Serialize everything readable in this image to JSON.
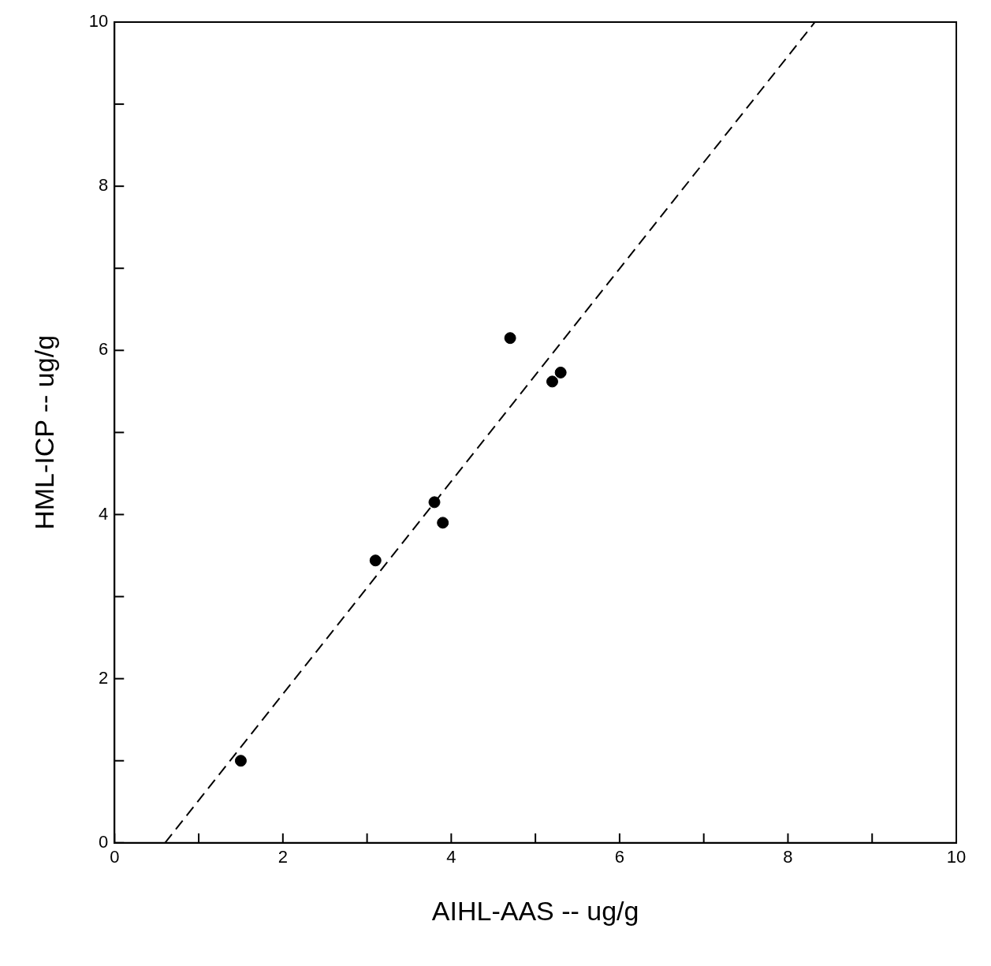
{
  "chart_data": {
    "type": "scatter",
    "xlabel": "AIHL-AAS -- ug/g",
    "ylabel": "HML-ICP -- ug/g",
    "xlim": [
      0,
      10
    ],
    "ylim": [
      0,
      10
    ],
    "xticks": [
      0,
      {
        "value": 1,
        "label": null
      },
      2,
      {
        "value": 3,
        "label": null
      },
      4,
      {
        "value": 5,
        "label": null
      },
      6,
      {
        "value": 7,
        "label": null
      },
      8,
      {
        "value": 9,
        "label": null
      },
      10
    ],
    "yticks": [
      0,
      {
        "value": 1,
        "label": null
      },
      2,
      {
        "value": 3,
        "label": null
      },
      4,
      {
        "value": 5,
        "label": null
      },
      6,
      {
        "value": 7,
        "label": null
      },
      8,
      {
        "value": 9,
        "label": null
      },
      10
    ],
    "grid": false,
    "legend": false,
    "series": [
      {
        "type": "scatter",
        "color": "#000000",
        "marker": "circle",
        "x": [
          1.5,
          3.1,
          3.8,
          3.9,
          4.7,
          5.2,
          5.3
        ],
        "values": [
          1.0,
          3.44,
          4.15,
          3.9,
          6.15,
          5.62,
          5.73
        ]
      },
      {
        "type": "line",
        "color": "#000000",
        "line_style": "dashed",
        "marker": "none",
        "x": [
          0.6,
          8.32
        ],
        "values": [
          0,
          10
        ]
      }
    ]
  }
}
